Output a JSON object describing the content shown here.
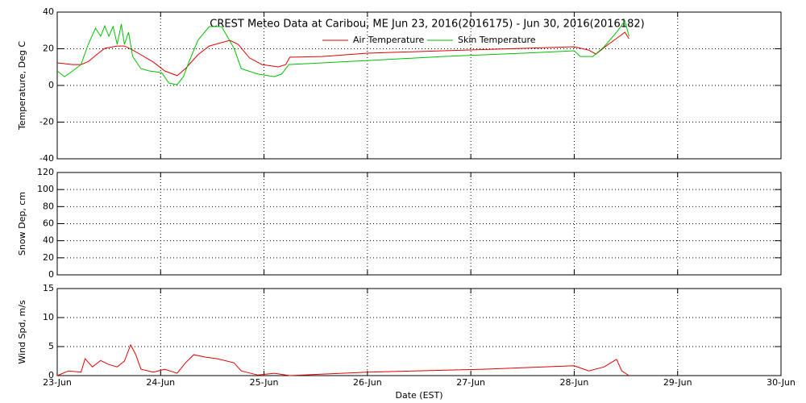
{
  "chart_data": [
    {
      "type": "line",
      "title": "CREST Meteo Data at Caribou, ME   Jun 23, 2016(2016175) - Jun 30, 2016(2016182)",
      "ylabel": "Temperature, Deg C",
      "xlim": [
        0,
        7
      ],
      "ylim": [
        -40,
        40
      ],
      "yticks": [
        -40,
        -20,
        0,
        20,
        40
      ],
      "grid": true,
      "series": [
        {
          "name": "Air Temperature",
          "color": "#e00000",
          "x": [
            0,
            0.15,
            0.23,
            0.3,
            0.38,
            0.46,
            0.58,
            0.65,
            0.73,
            0.81,
            0.93,
            1.04,
            1.16,
            1.24,
            1.36,
            1.47,
            1.67,
            1.75,
            1.86,
            1.98,
            2.14,
            2.21,
            2.25,
            2.56,
            3.0,
            3.73,
            4.51,
            5.0,
            5.14,
            5.21,
            5.33,
            5.45,
            5.49,
            5.53
          ],
          "values": [
            12.3,
            11.4,
            11.4,
            13,
            16.7,
            20.2,
            21.5,
            21.5,
            19.3,
            16.7,
            12.7,
            7.9,
            5.3,
            9.2,
            16.7,
            21.5,
            24.6,
            22.4,
            15,
            11.4,
            10.1,
            11.4,
            15.4,
            15.8,
            17.6,
            18.9,
            20.2,
            21.1,
            19.3,
            17.1,
            22.4,
            27.3,
            29,
            25.5
          ]
        },
        {
          "name": "Skin Temperature",
          "color": "#00c000",
          "x": [
            0,
            0.07,
            0.15,
            0.23,
            0.3,
            0.37,
            0.42,
            0.46,
            0.5,
            0.54,
            0.58,
            0.62,
            0.65,
            0.69,
            0.73,
            0.81,
            0.89,
            1.01,
            1.08,
            1.16,
            1.22,
            1.28,
            1.36,
            1.47,
            1.59,
            1.71,
            1.78,
            1.94,
            2.1,
            2.17,
            2.24,
            2.56,
            3.0,
            3.73,
            4.51,
            5.0,
            5.06,
            5.18,
            5.29,
            5.41,
            5.49,
            5.53
          ],
          "values": [
            7.9,
            4.8,
            7.9,
            11.4,
            22.4,
            31.2,
            26.8,
            32.5,
            26.8,
            32.1,
            22.4,
            33.4,
            22.4,
            29,
            15.8,
            9.2,
            7.9,
            7,
            1.3,
            0.4,
            4.8,
            13.6,
            24.6,
            32.1,
            32.1,
            20.2,
            9.2,
            6.2,
            4.8,
            6.2,
            11.4,
            12.3,
            13.6,
            15.8,
            17.6,
            18.9,
            15.8,
            15.8,
            21.1,
            29,
            35.2,
            26.8
          ]
        }
      ]
    },
    {
      "type": "line",
      "ylabel": "Snow Dep, cm",
      "xlim": [
        0,
        7
      ],
      "ylim": [
        0,
        120
      ],
      "yticks": [
        0,
        20,
        40,
        60,
        80,
        100,
        120
      ],
      "grid": true
    },
    {
      "type": "line",
      "ylabel": "Wind Spd, m/s",
      "xlabel": "Date (EST)",
      "xlim": [
        0,
        7
      ],
      "ylim": [
        0,
        15
      ],
      "yticks": [
        0,
        5,
        10,
        15
      ],
      "grid": true,
      "xticks": [
        {
          "value": 0,
          "label": "23-Jun"
        },
        {
          "value": 1,
          "label": "24-Jun"
        },
        {
          "value": 2,
          "label": "25-Jun"
        },
        {
          "value": 3,
          "label": "26-Jun"
        },
        {
          "value": 4,
          "label": "27-Jun"
        },
        {
          "value": 5,
          "label": "28-Jun"
        },
        {
          "value": 6,
          "label": "29-Jun"
        },
        {
          "value": 7,
          "label": "30-Jun"
        }
      ],
      "series": [
        {
          "color": "#e00000",
          "x": [
            0,
            0.11,
            0.23,
            0.27,
            0.34,
            0.42,
            0.5,
            0.58,
            0.65,
            0.71,
            0.76,
            0.81,
            0.93,
            1.04,
            1.16,
            1.24,
            1.32,
            1.43,
            1.55,
            1.71,
            1.78,
            1.94,
            2.1,
            2.25,
            3.0,
            4.12,
            5.0,
            5.14,
            5.29,
            5.41,
            5.46,
            5.53
          ],
          "values": [
            0,
            0.8,
            0.6,
            2.9,
            1.5,
            2.6,
            1.9,
            1.5,
            2.5,
            5.3,
            3.6,
            1.1,
            0.6,
            1.1,
            0.4,
            2.2,
            3.6,
            3.2,
            2.9,
            2.2,
            0.8,
            0.1,
            0.4,
            0,
            0.6,
            1.1,
            1.7,
            0.8,
            1.5,
            2.8,
            0.8,
            0
          ]
        }
      ]
    }
  ]
}
